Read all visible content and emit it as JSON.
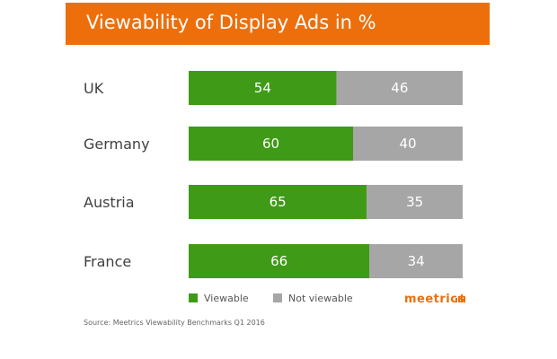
{
  "chart_data": {
    "type": "bar",
    "stacked": true,
    "orientation": "horizontal",
    "title": "Viewability of Display Ads in %",
    "categories": [
      "UK",
      "Germany",
      "Austria",
      "France"
    ],
    "series": [
      {
        "name": "Viewable",
        "values": [
          54,
          60,
          65,
          66
        ],
        "color": "#3f9a17"
      },
      {
        "name": "Not viewable",
        "values": [
          46,
          40,
          35,
          34
        ],
        "color": "#a6a6a6"
      }
    ],
    "xlim": [
      0,
      100
    ],
    "grid": false,
    "legend_position": "bottom"
  },
  "colors": {
    "header_bg": "#ec6f0c",
    "brand": "#ec6f0c"
  },
  "source": "Source: Meetrics Viewability Benchmarks Q1 2016",
  "brand_logo": "meetrics"
}
